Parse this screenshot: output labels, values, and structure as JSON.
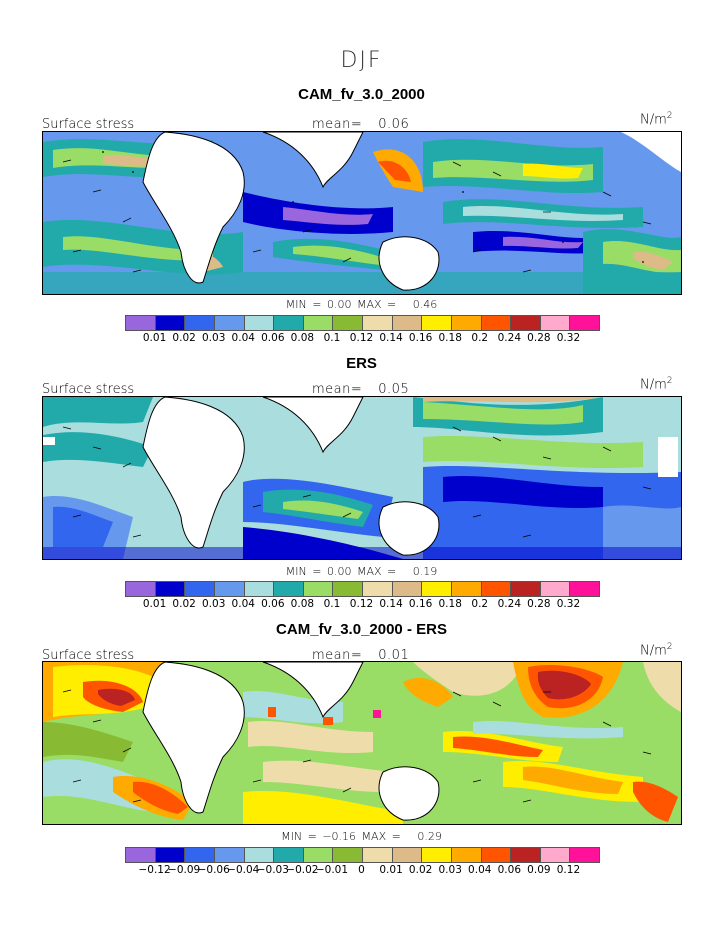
{
  "season": "DJF",
  "panels": [
    {
      "title": "CAM_fv_3.0_2000",
      "label": "Surface stress",
      "mean_text": "mean=",
      "mean_value": "0.06",
      "unit": "N/m",
      "unit_exp": "2",
      "min_label": "MIN =",
      "min_value": "0.00",
      "max_label": "MAX =",
      "max_value": "0.46",
      "colorbar_ticks": [
        "0.01",
        "0.02",
        "0.03",
        "0.04",
        "0.06",
        "0.08",
        "0.1",
        "0.12",
        "0.14",
        "0.16",
        "0.18",
        "0.2",
        "0.24",
        "0.28",
        "0.32"
      ]
    },
    {
      "title": "ERS",
      "label": "Surface stress",
      "mean_text": "mean=",
      "mean_value": "0.05",
      "unit": "N/m",
      "unit_exp": "2",
      "min_label": "MIN =",
      "min_value": "0.00",
      "max_label": "MAX =",
      "max_value": "0.19",
      "colorbar_ticks": [
        "0.01",
        "0.02",
        "0.03",
        "0.04",
        "0.06",
        "0.08",
        "0.1",
        "0.12",
        "0.14",
        "0.16",
        "0.18",
        "0.2",
        "0.24",
        "0.28",
        "0.32"
      ]
    },
    {
      "title": "CAM_fv_3.0_2000 - ERS",
      "label": "Surface stress",
      "mean_text": "mean=",
      "mean_value": "0.01",
      "unit": "N/m",
      "unit_exp": "2",
      "min_label": "MIN =",
      "min_value": "−0.16",
      "max_label": "MAX =",
      "max_value": "0.29",
      "colorbar_ticks": [
        "−0.12",
        "−0.09",
        "−0.06",
        "−0.04",
        "−0.03",
        "−0.02",
        "−0.01",
        "0",
        "0.01",
        "0.02",
        "0.03",
        "0.04",
        "0.06",
        "0.09",
        "0.12"
      ]
    }
  ],
  "colorbar_colors": [
    "#9966dd",
    "#0000cc",
    "#3366ee",
    "#6699ee",
    "#aadddd",
    "#22aaaa",
    "#99dd66",
    "#88bb33",
    "#eeddaa",
    "#ddbb88",
    "#ffee00",
    "#ffaa00",
    "#ff5500",
    "#bb2222",
    "#ffaacc",
    "#ff1199"
  ]
}
